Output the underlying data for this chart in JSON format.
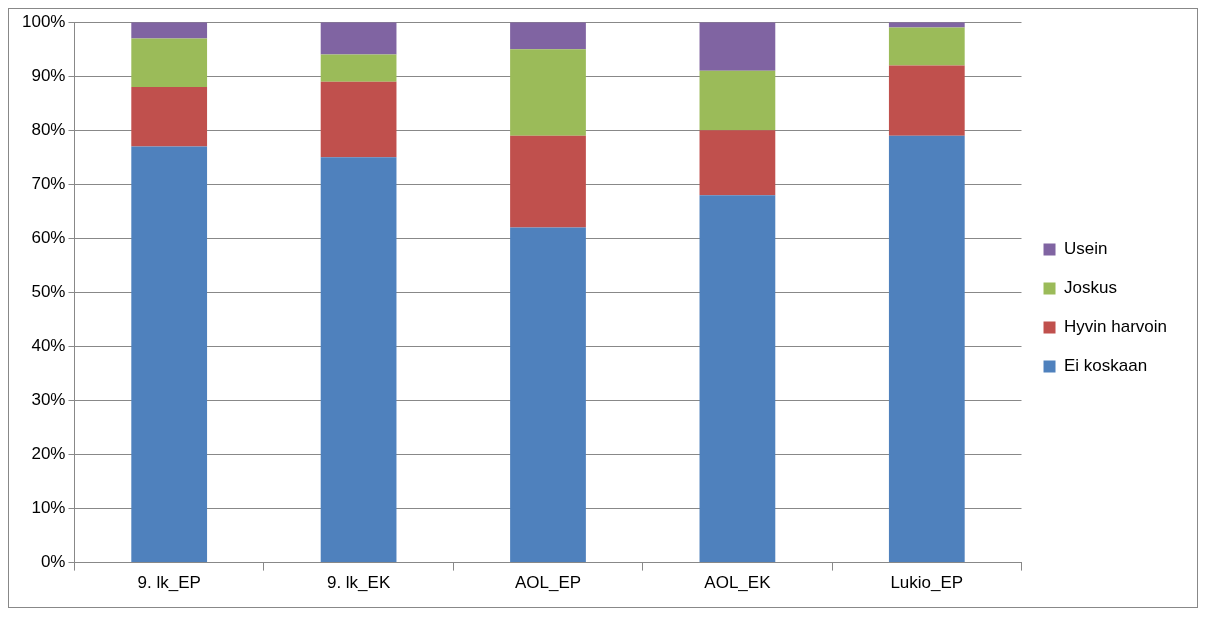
{
  "chart_data": {
    "type": "bar",
    "stacked": true,
    "categories": [
      "9. lk_EP",
      "9. lk_EK",
      "AOL_EP",
      "AOL_EK",
      "Lukio_EP"
    ],
    "series": [
      {
        "name": "Ei koskaan",
        "color": "#4f81bd",
        "values": [
          77,
          75,
          62,
          68,
          79
        ]
      },
      {
        "name": "Hyvin harvoin",
        "color": "#c0504d",
        "values": [
          11,
          14,
          17,
          12,
          13
        ]
      },
      {
        "name": "Joskus",
        "color": "#9bbb59",
        "values": [
          9,
          5,
          16,
          11,
          7
        ]
      },
      {
        "name": "Usein",
        "color": "#8064a2",
        "values": [
          3,
          6,
          5,
          9,
          1
        ]
      }
    ],
    "ylim": [
      0,
      100
    ],
    "yticks": [
      {
        "value": 0,
        "label": "0%"
      },
      {
        "value": 10,
        "label": "10%"
      },
      {
        "value": 20,
        "label": "20%"
      },
      {
        "value": 30,
        "label": "30%"
      },
      {
        "value": 40,
        "label": "40%"
      },
      {
        "value": 50,
        "label": "50%"
      },
      {
        "value": 60,
        "label": "60%"
      },
      {
        "value": 70,
        "label": "70%"
      },
      {
        "value": 80,
        "label": "80%"
      },
      {
        "value": 90,
        "label": "90%"
      },
      {
        "value": 100,
        "label": "100%"
      }
    ],
    "grid": "y",
    "legend": "right"
  }
}
